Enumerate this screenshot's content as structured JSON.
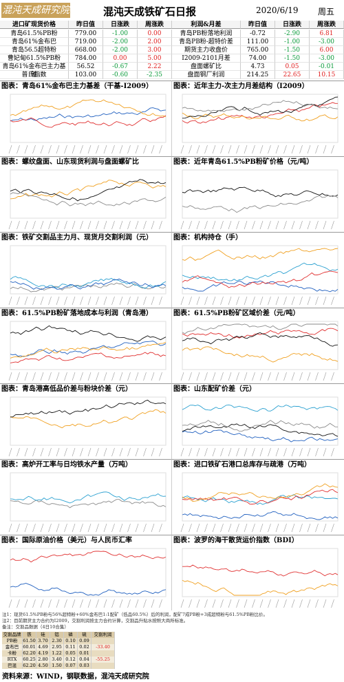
{
  "header": {
    "logo": "混沌天成研究院",
    "title": "混沌天成铁矿石日报",
    "date": "2020/6/19",
    "weekday": "周五"
  },
  "spot_table": {
    "columns": [
      "进口矿现货价格",
      "昨日值",
      "日涨跌",
      "周涨跌"
    ],
    "rows": [
      [
        "青岛61.5%PB粉",
        "779.00",
        "-1.00",
        "0.00"
      ],
      [
        "青岛61%金布巴",
        "719.00",
        "-2.00",
        "2.00"
      ],
      [
        "青岛56.5超特粉",
        "668.00",
        "-2.00",
        "3.00"
      ],
      [
        "曹妃甸61.5%PB粉",
        "784.00",
        "0.00",
        "5.00"
      ],
      [
        "青岛61%金布巴主力基差",
        "56.52",
        "-0.67",
        "2.22"
      ],
      [
        "普氏指数",
        "103.00",
        "-0.60",
        "-2.35"
      ]
    ]
  },
  "spread_table": {
    "columns": [
      "利润&月差",
      "昨日值",
      "日涨跌",
      "周涨跌"
    ],
    "rows": [
      [
        "青岛PB粉落地利润",
        "-0.72",
        "-2.90",
        "6.81"
      ],
      [
        "青岛PB粉-超特价差",
        "111.00",
        "-1.00",
        "-3.00"
      ],
      [
        "期货主力收盘价",
        "765.00",
        "-1.50",
        "6.00"
      ],
      [
        "I2009-2101月差",
        "74.00",
        "-1.50",
        "-3.00"
      ],
      [
        "盘面螺矿比",
        "4.73",
        "0.05",
        "-0.01"
      ],
      [
        "盘面钢厂利润",
        "214.25",
        "22.65",
        "10.15"
      ]
    ]
  },
  "panels": [
    {
      "title": "图表：青岛61%金布巴主力基差（干基-I2009）"
    },
    {
      "title": "图表：近年主力-次主力月差结构（I2009）"
    },
    {
      "title": "图表：螺纹盘面、山东现货利润与盘面螺矿比"
    },
    {
      "title": "图表：近年青岛61.5%PB粉矿价格（元/吨）"
    },
    {
      "title": "图表：铁矿交割品主力月、现货月交割利润（元）"
    },
    {
      "title": "图表：机构持仓（手）"
    },
    {
      "title": "图表：61.5%PB粉矿落地成本与利润（青岛港）"
    },
    {
      "title": "图表：61.5%PB粉矿区域价差（元/吨）"
    },
    {
      "title": "图表：青岛港高低品价差与粉块价差（元）"
    },
    {
      "title": "图表：山东配矿价差（元）"
    },
    {
      "title": "图表：高炉开工率与日均铁水产量（万吨）"
    },
    {
      "title": "图表：进口铁矿石港口总库存与疏港（万吨）"
    },
    {
      "title": "图表：国际原油价格（美元）与人民币汇率"
    },
    {
      "title": "图表：波罗的海干散货运价指数（BDI）"
    }
  ],
  "notes": [
    "注1：现货61.5%PB粉与56%超特粉+60%金布巴1:1配矿（低品60.5%）后的利润，配矿7成PB粉+3成超特粉与61.5%PB粉比价。",
    "注2：目前期货主力合约为I2009，交割利润按主力合约计算，交割品升贴水按照大商所标准。",
    "备注：交割品数据（4日10合集）"
  ],
  "delivery_table": {
    "columns": [
      "交割品牌",
      "铁",
      "硅",
      "铝",
      "磷",
      "硫",
      "交割利润"
    ],
    "rows": [
      [
        "PB粉",
        "61.50",
        "3.70",
        "2.30",
        "0.10",
        "0.09",
        ""
      ],
      [
        "金布巴",
        "60.01",
        "4.69",
        "2.95",
        "0.11",
        "0.02",
        "-33.40"
      ],
      [
        "卡粉",
        "62.20",
        "4.19",
        "1.22",
        "0.05",
        "0.01",
        ""
      ],
      [
        "RTX",
        "60.25",
        "2.80",
        "3.40",
        "0.12",
        "0.04",
        "-55.25"
      ],
      [
        "巴混",
        "62.20",
        "4.50",
        "1.50",
        "0.07",
        "0.03",
        ""
      ]
    ]
  },
  "source": "资料来源：WIND，钢联数据，混沌天成研究院"
}
